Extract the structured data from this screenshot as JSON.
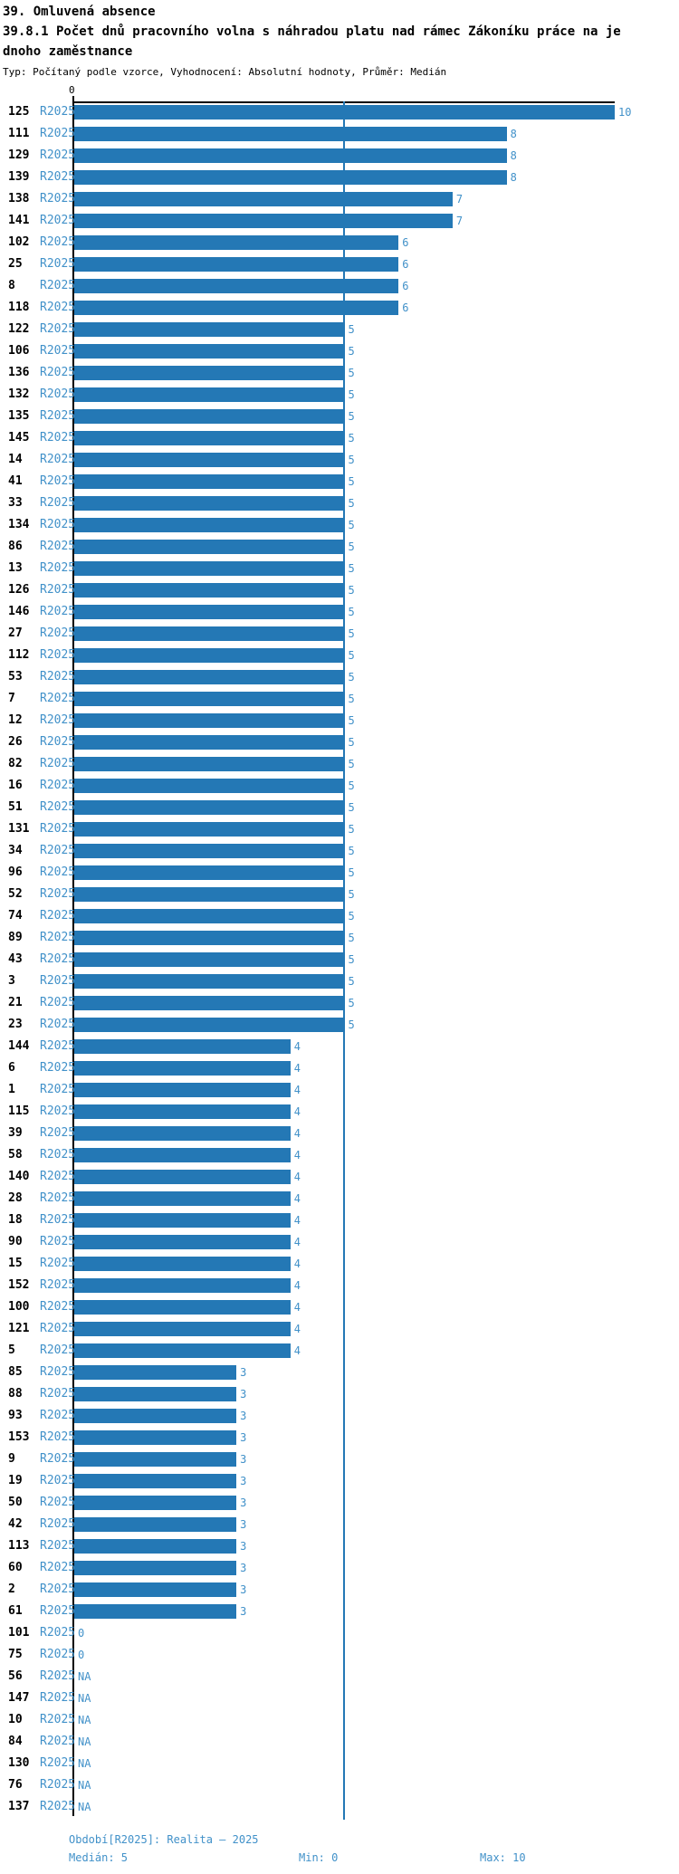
{
  "title": "39. Omluvená absence",
  "subtitle_lines": [
    "39.8.1 Počet dnů pracovního volna s náhradou platu nad rámec Zákoníku práce na je",
    "dnoho zaměstnance"
  ],
  "meta": "Typ: Počítaný podle vzorce, Vyhodnocení: Absolutní hodnoty, Průměr: Medián",
  "series_label": "R2025",
  "axis": {
    "zero_label": "0"
  },
  "footer": {
    "period": "Období[R2025]: Realita – 2025",
    "median": "Medián: 5",
    "min": "Min: 0",
    "max": "Max: 10"
  },
  "colors": {
    "bar": "#2478b5",
    "blue_text": "#4191c9",
    "median_line": "#2478b5",
    "axis": "#000000"
  },
  "chart_data": {
    "type": "bar",
    "orientation": "horizontal",
    "title": "39.8.1 Počet dnů pracovního volna s náhradou platu nad rámec Zákoníku práce na jednoho zaměstnance",
    "xlabel": "",
    "ylabel": "",
    "xlim": [
      0,
      10
    ],
    "median_line_value": 5,
    "grid": false,
    "legend_position": "none",
    "na_label": "NA",
    "categories": [
      "125",
      "111",
      "129",
      "139",
      "138",
      "141",
      "102",
      "25",
      "8",
      "118",
      "122",
      "106",
      "136",
      "132",
      "135",
      "145",
      "14",
      "41",
      "33",
      "134",
      "86",
      "13",
      "126",
      "146",
      "27",
      "112",
      "53",
      "7",
      "12",
      "26",
      "82",
      "16",
      "51",
      "131",
      "34",
      "96",
      "52",
      "74",
      "89",
      "43",
      "3",
      "21",
      "23",
      "144",
      "6",
      "1",
      "115",
      "39",
      "58",
      "140",
      "28",
      "18",
      "90",
      "15",
      "152",
      "100",
      "121",
      "5",
      "85",
      "88",
      "93",
      "153",
      "9",
      "19",
      "50",
      "42",
      "113",
      "60",
      "2",
      "61",
      "101",
      "75",
      "56",
      "147",
      "10",
      "84",
      "130",
      "76",
      "137"
    ],
    "series": [
      {
        "name": "R2025",
        "values": [
          10,
          8,
          8,
          8,
          7,
          7,
          6,
          6,
          6,
          6,
          5,
          5,
          5,
          5,
          5,
          5,
          5,
          5,
          5,
          5,
          5,
          5,
          5,
          5,
          5,
          5,
          5,
          5,
          5,
          5,
          5,
          5,
          5,
          5,
          5,
          5,
          5,
          5,
          5,
          5,
          5,
          5,
          5,
          4,
          4,
          4,
          4,
          4,
          4,
          4,
          4,
          4,
          4,
          4,
          4,
          4,
          4,
          4,
          3,
          3,
          3,
          3,
          3,
          3,
          3,
          3,
          3,
          3,
          3,
          3,
          0,
          0,
          "NA",
          "NA",
          "NA",
          "NA",
          "NA",
          "NA",
          "NA"
        ]
      }
    ],
    "stats": {
      "median": 5,
      "min": 0,
      "max": 10
    }
  }
}
